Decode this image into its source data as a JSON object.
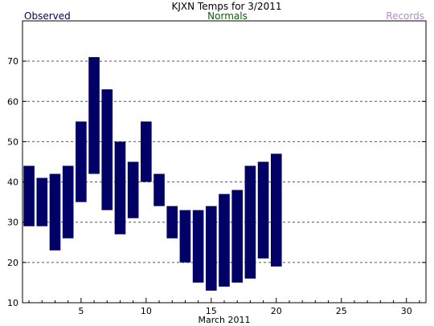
{
  "chart_data": {
    "type": "bar",
    "title": "KJXN Temps for 3/2011",
    "legend": [
      {
        "name": "Observed",
        "color": "#000066",
        "position": "top-left"
      },
      {
        "name": "Normals",
        "color": "#006600",
        "position": "top-center"
      },
      {
        "name": "Records",
        "color": "#b58ad6",
        "position": "top-right"
      }
    ],
    "xlabel": "March 2011",
    "ylabel": "",
    "xlim": [
      0.5,
      31.5
    ],
    "ylim": [
      10,
      80
    ],
    "y_ticks": [
      10,
      20,
      30,
      40,
      50,
      60,
      70
    ],
    "x_ticks": [
      5,
      10,
      15,
      20,
      25,
      30
    ],
    "grid": {
      "horizontal": "dashed",
      "vertical": false
    },
    "bar_color": "#000066",
    "series": [
      {
        "name": "Observed",
        "days": [
          1,
          2,
          3,
          4,
          5,
          6,
          7,
          8,
          9,
          10,
          11,
          12,
          13,
          14,
          15,
          16,
          17,
          18,
          19,
          20
        ],
        "high": [
          44,
          41,
          42,
          44,
          55,
          71,
          63,
          50,
          45,
          55,
          42,
          34,
          33,
          33,
          34,
          37,
          38,
          44,
          45,
          47
        ],
        "low": [
          29,
          29,
          23,
          26,
          35,
          42,
          33,
          27,
          31,
          40,
          34,
          26,
          20,
          15,
          13,
          14,
          15,
          16,
          21,
          19
        ]
      }
    ]
  }
}
